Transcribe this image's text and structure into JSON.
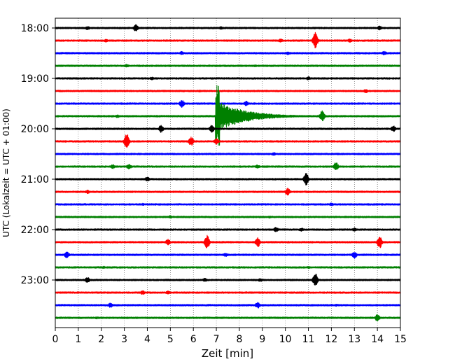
{
  "chart_data": {
    "type": "line",
    "title": "",
    "xlabel": "Zeit  [min]",
    "ylabel": "UTC (Lokalzeit = UTC + 01:00)",
    "xlim": [
      0,
      15
    ],
    "x_ticks": [
      0,
      1,
      2,
      3,
      4,
      5,
      6,
      7,
      8,
      9,
      10,
      11,
      12,
      13,
      14,
      15
    ],
    "y_tick_labels": [
      "18:00",
      "19:00",
      "20:00",
      "21:00",
      "22:00",
      "23:00"
    ],
    "y_tick_rows": [
      0,
      4,
      8,
      12,
      16,
      20
    ],
    "rows_per_hour": 4,
    "minutes_per_row": 15,
    "grid": "vertical dotted at each minute",
    "row_colors": [
      "#000000",
      "#ff0000",
      "#0000ff",
      "#008000"
    ],
    "series": [
      {
        "start": "18:00",
        "color": "#000000",
        "events": [
          [
            1.4,
            0.3
          ],
          [
            3.5,
            0.6
          ],
          [
            7.2,
            0.25
          ],
          [
            14.1,
            0.35
          ]
        ]
      },
      {
        "start": "18:15",
        "color": "#ff0000",
        "events": [
          [
            2.2,
            0.25
          ],
          [
            9.8,
            0.3
          ],
          [
            11.3,
            1.3
          ],
          [
            12.8,
            0.3
          ]
        ]
      },
      {
        "start": "18:30",
        "color": "#0000ff",
        "events": [
          [
            5.5,
            0.3
          ],
          [
            10.1,
            0.25
          ],
          [
            14.3,
            0.35
          ]
        ]
      },
      {
        "start": "18:45",
        "color": "#008000",
        "events": [
          [
            3.1,
            0.25
          ],
          [
            8.7,
            0.2
          ]
        ]
      },
      {
        "start": "19:00",
        "color": "#000000",
        "events": [
          [
            4.2,
            0.25
          ],
          [
            11.0,
            0.3
          ]
        ]
      },
      {
        "start": "19:15",
        "color": "#ff0000",
        "events": [
          [
            6.3,
            0.2
          ],
          [
            13.5,
            0.3
          ]
        ]
      },
      {
        "start": "19:30",
        "color": "#0000ff",
        "events": [
          [
            5.5,
            0.6
          ],
          [
            8.3,
            0.4
          ]
        ]
      },
      {
        "start": "19:45",
        "color": "#008000",
        "events": [
          [
            2.7,
            0.25
          ],
          [
            7.0,
            5.0
          ],
          [
            11.6,
            0.9
          ]
        ]
      },
      {
        "start": "20:00",
        "color": "#000000",
        "events": [
          [
            4.6,
            0.6
          ],
          [
            6.8,
            0.6
          ],
          [
            14.7,
            0.5
          ]
        ]
      },
      {
        "start": "20:15",
        "color": "#ff0000",
        "events": [
          [
            3.1,
            1.3
          ],
          [
            5.9,
            0.8
          ],
          [
            7.0,
            0.5
          ]
        ]
      },
      {
        "start": "20:30",
        "color": "#0000ff",
        "events": [
          [
            9.5,
            0.25
          ]
        ]
      },
      {
        "start": "20:45",
        "color": "#008000",
        "events": [
          [
            2.5,
            0.35
          ],
          [
            3.2,
            0.45
          ],
          [
            8.8,
            0.3
          ],
          [
            12.2,
            0.7
          ]
        ]
      },
      {
        "start": "21:00",
        "color": "#000000",
        "events": [
          [
            4.0,
            0.4
          ],
          [
            10.9,
            1.0
          ]
        ]
      },
      {
        "start": "21:15",
        "color": "#ff0000",
        "events": [
          [
            1.4,
            0.3
          ],
          [
            10.1,
            0.6
          ]
        ]
      },
      {
        "start": "21:30",
        "color": "#0000ff",
        "events": [
          [
            3.8,
            0.2
          ],
          [
            12.0,
            0.25
          ]
        ]
      },
      {
        "start": "21:45",
        "color": "#008000",
        "events": [
          [
            5.0,
            0.25
          ],
          [
            9.3,
            0.2
          ]
        ]
      },
      {
        "start": "22:00",
        "color": "#000000",
        "events": [
          [
            9.6,
            0.4
          ],
          [
            10.7,
            0.3
          ],
          [
            13.0,
            0.3
          ]
        ]
      },
      {
        "start": "22:15",
        "color": "#ff0000",
        "events": [
          [
            4.9,
            0.5
          ],
          [
            6.6,
            1.1
          ],
          [
            8.8,
            0.8
          ],
          [
            14.1,
            1.0
          ]
        ]
      },
      {
        "start": "22:30",
        "color": "#0000ff",
        "events": [
          [
            0.5,
            0.6
          ],
          [
            7.4,
            0.3
          ],
          [
            13.0,
            0.6
          ]
        ]
      },
      {
        "start": "22:45",
        "color": "#008000",
        "events": [
          [
            2.1,
            0.2
          ],
          [
            11.0,
            0.2
          ]
        ]
      },
      {
        "start": "23:00",
        "color": "#000000",
        "events": [
          [
            1.4,
            0.5
          ],
          [
            6.5,
            0.3
          ],
          [
            8.9,
            0.3
          ],
          [
            11.3,
            1.1
          ]
        ]
      },
      {
        "start": "23:15",
        "color": "#ff0000",
        "events": [
          [
            3.8,
            0.35
          ],
          [
            4.9,
            0.3
          ]
        ]
      },
      {
        "start": "23:30",
        "color": "#0000ff",
        "events": [
          [
            2.4,
            0.4
          ],
          [
            8.8,
            0.5
          ],
          [
            12.2,
            0.2
          ]
        ]
      },
      {
        "start": "23:45",
        "color": "#008000",
        "events": [
          [
            1.8,
            0.2
          ],
          [
            14.0,
            0.6
          ]
        ]
      }
    ]
  }
}
